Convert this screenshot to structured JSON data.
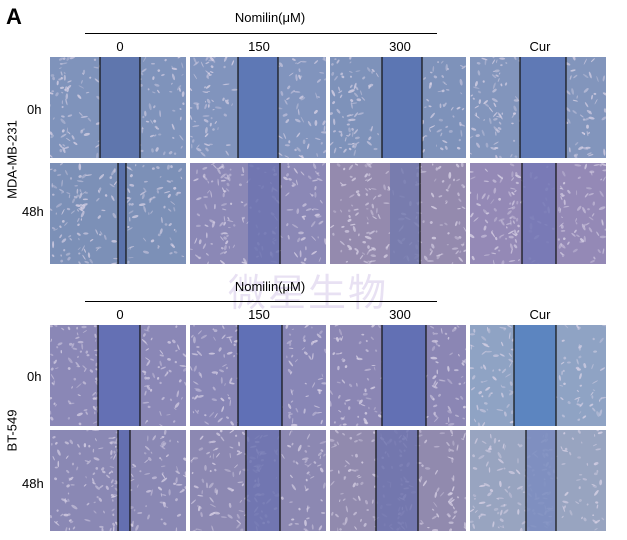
{
  "panel_letter": "A",
  "sections": [
    {
      "cell_line": "MDA-MB-231",
      "treatment_label": "Nomilin(μM)",
      "columns": [
        "0",
        "150",
        "300",
        "Cur"
      ],
      "rows": [
        "0h",
        "48h"
      ]
    },
    {
      "cell_line": "BT-549",
      "treatment_label": "Nomilin(μM)",
      "columns": [
        "0",
        "150",
        "300",
        "Cur"
      ],
      "rows": [
        "0h",
        "48h"
      ]
    }
  ],
  "watermark": "微星生物",
  "colors": {
    "gap_blue": "#5a72b0",
    "cell_bg_blue": "#7d8fb8",
    "cell_bg_purple": "#8f86b4",
    "cell_dots": "#d9d2e6"
  }
}
